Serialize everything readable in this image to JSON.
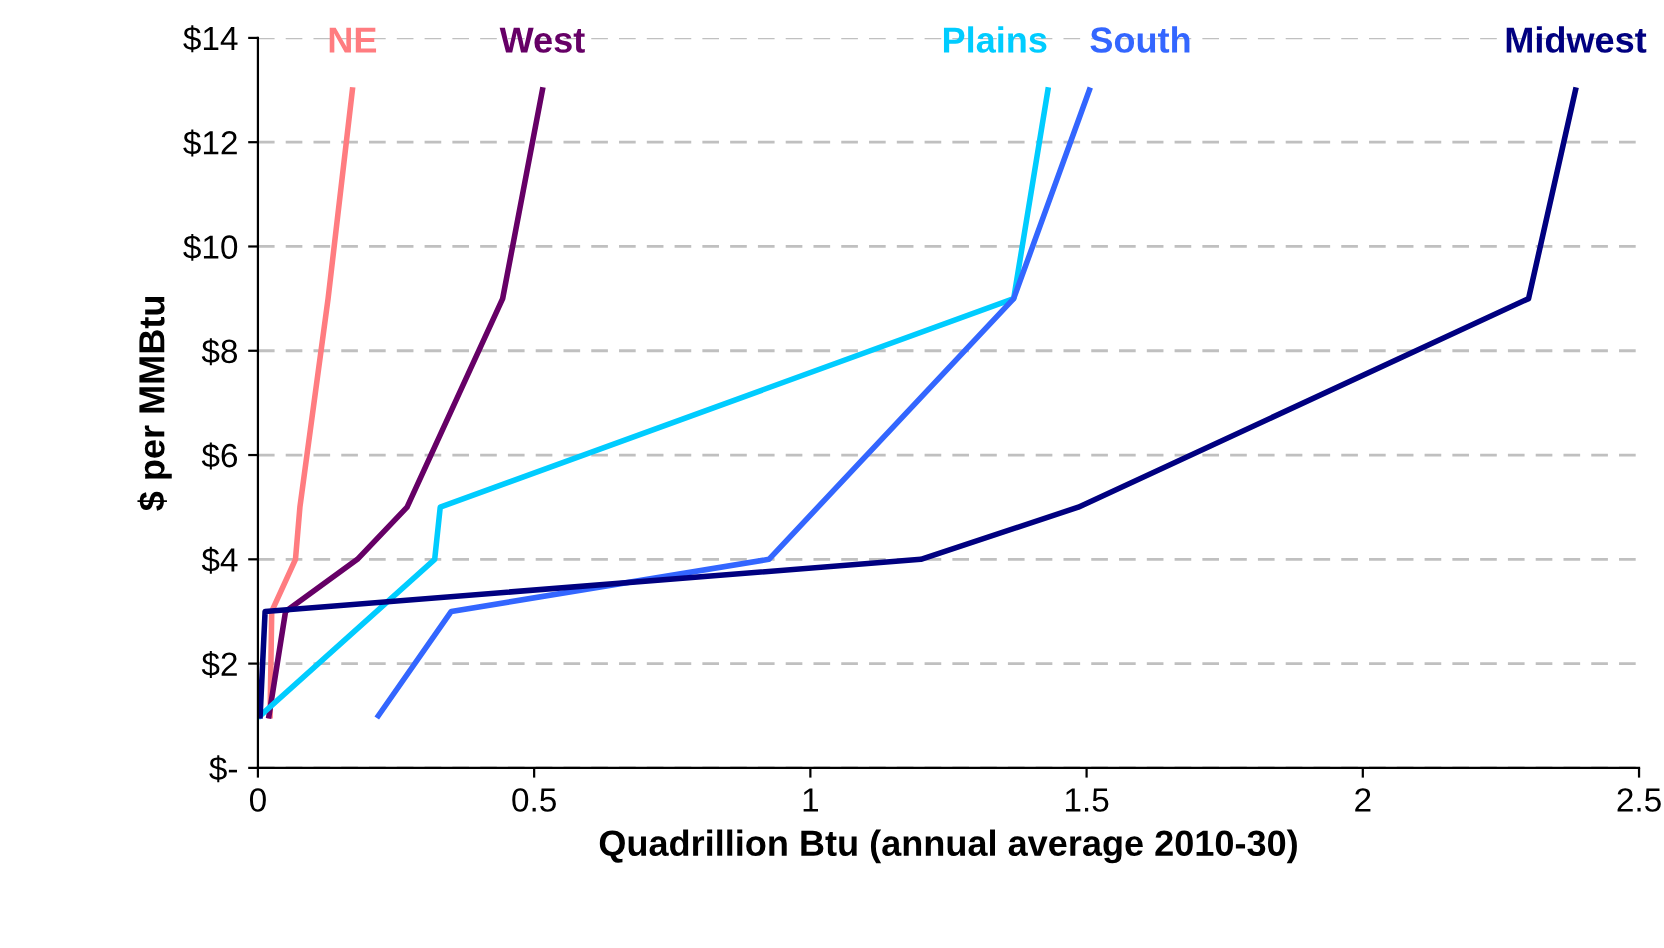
{
  "chart_data": {
    "type": "line",
    "xlabel": "Quadrillion Btu (annual average 2010-30)",
    "ylabel": "$ per MMBtu",
    "xlim": [
      0,
      2.5
    ],
    "xticks": [
      0,
      0.5,
      1,
      1.5,
      2,
      2.5
    ],
    "ylim": [
      0,
      14
    ],
    "yticks": [
      {
        "value": 0,
        "label": "$-"
      },
      {
        "value": 2,
        "label": "$2"
      },
      {
        "value": 4,
        "label": "$4"
      },
      {
        "value": 6,
        "label": "$6"
      },
      {
        "value": 8,
        "label": "$8"
      },
      {
        "value": 10,
        "label": "$10"
      },
      {
        "value": 12,
        "label": "$12"
      },
      {
        "value": 14,
        "label": "$14"
      }
    ],
    "grid": "y",
    "legend": false,
    "marker": "none",
    "line_style": "solid",
    "series": [
      {
        "name": "NE",
        "color": "#ff7c80",
        "x": [
          0.022,
          0.025,
          0.068,
          0.076,
          0.127,
          0.171
        ],
        "values": [
          1,
          3,
          4,
          5,
          9,
          13
        ]
      },
      {
        "name": "West",
        "color": "#660066",
        "x": [
          0.02,
          0.05,
          0.18,
          0.27,
          0.443,
          0.515
        ],
        "values": [
          1,
          3,
          4,
          5,
          9,
          13
        ]
      },
      {
        "name": "Plains",
        "color": "#00ccff",
        "x": [
          0.004,
          0.32,
          0.33,
          1.368,
          1.43
        ],
        "values": [
          1,
          4,
          5,
          9,
          13
        ]
      },
      {
        "name": "South",
        "color": "#3366ff",
        "x": [
          0.218,
          0.35,
          0.925,
          1.368,
          1.505
        ],
        "values": [
          1,
          3,
          4,
          9,
          13
        ]
      },
      {
        "name": "Midwest",
        "color": "#000080",
        "x": [
          0.004,
          0.013,
          1.2,
          1.485,
          2.3,
          2.385
        ],
        "values": [
          1,
          3,
          4,
          5,
          9,
          13
        ]
      }
    ]
  }
}
